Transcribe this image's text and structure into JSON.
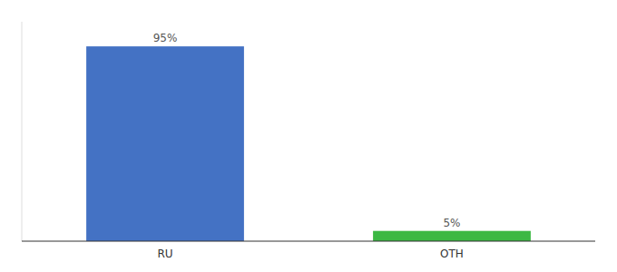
{
  "chart_data": {
    "type": "bar",
    "categories": [
      "RU",
      "OTH"
    ],
    "values": [
      95,
      5
    ],
    "value_labels": [
      "95%",
      "5%"
    ],
    "colors": [
      "#4472c4",
      "#3cb843"
    ],
    "ylim": [
      0,
      107
    ],
    "data_labels": true,
    "tick_labels": "x",
    "grid": false
  }
}
